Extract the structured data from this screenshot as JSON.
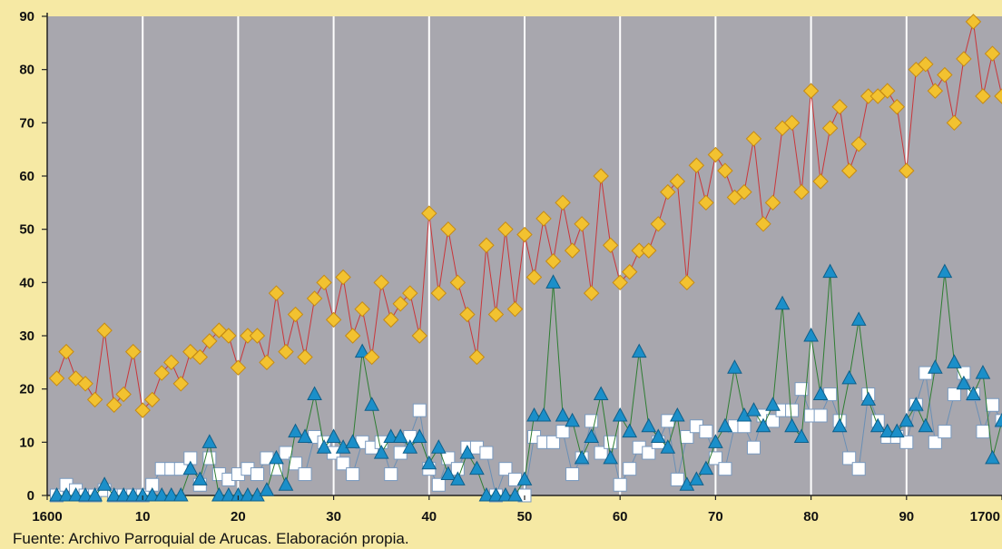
{
  "source_note": "Fuente: Archivo Parroquial de Arucas. Elaboración propia.",
  "colors": {
    "background": "#f6e9a4",
    "plot_area": "#a8a7ae",
    "gridline": "#ffffff",
    "diamond_fill": "#f2c230",
    "diamond_line": "#c9363a",
    "triangle_fill": "#1b8fc9",
    "triangle_line": "#2e7d32",
    "square_fill": "#ffffff",
    "square_line": "#6a8fb5"
  },
  "chart_data": {
    "type": "line",
    "title": "",
    "xlabel": "",
    "ylabel": "",
    "xlim": [
      1600,
      1700
    ],
    "ylim": [
      0,
      90
    ],
    "x_ticks": [
      1600,
      1610,
      1620,
      1630,
      1640,
      1650,
      1660,
      1670,
      1680,
      1690,
      1700
    ],
    "x_tick_labels": [
      "1600",
      "10",
      "20",
      "30",
      "40",
      "50",
      "60",
      "70",
      "80",
      "90",
      "1700"
    ],
    "y_ticks": [
      0,
      10,
      20,
      30,
      40,
      50,
      60,
      70,
      80,
      90
    ],
    "y_tick_labels": [
      "0",
      "10",
      "20",
      "30",
      "40",
      "50",
      "60",
      "70",
      "80",
      "90"
    ],
    "grid": "vertical",
    "legend": "none",
    "x": [
      1601,
      1602,
      1603,
      1604,
      1605,
      1606,
      1607,
      1608,
      1609,
      1610,
      1611,
      1612,
      1613,
      1614,
      1615,
      1616,
      1617,
      1618,
      1619,
      1620,
      1621,
      1622,
      1623,
      1624,
      1625,
      1626,
      1627,
      1628,
      1629,
      1630,
      1631,
      1632,
      1633,
      1634,
      1635,
      1636,
      1637,
      1638,
      1639,
      1640,
      1641,
      1642,
      1643,
      1644,
      1645,
      1646,
      1647,
      1648,
      1649,
      1650,
      1651,
      1652,
      1653,
      1654,
      1655,
      1656,
      1657,
      1658,
      1659,
      1660,
      1661,
      1662,
      1663,
      1664,
      1665,
      1666,
      1667,
      1668,
      1669,
      1670,
      1671,
      1672,
      1673,
      1674,
      1675,
      1676,
      1677,
      1678,
      1679,
      1680,
      1681,
      1682,
      1683,
      1684,
      1685,
      1686,
      1687,
      1688,
      1689,
      1690,
      1691,
      1692,
      1693,
      1694,
      1695,
      1696,
      1697,
      1698,
      1699,
      1700
    ],
    "series": [
      {
        "marker": "diamond",
        "values": [
          22,
          27,
          22,
          21,
          18,
          31,
          17,
          19,
          27,
          16,
          18,
          23,
          25,
          21,
          27,
          26,
          29,
          31,
          30,
          24,
          30,
          30,
          25,
          38,
          27,
          34,
          26,
          37,
          40,
          33,
          41,
          30,
          35,
          26,
          40,
          33,
          36,
          38,
          30,
          53,
          38,
          50,
          40,
          34,
          26,
          47,
          34,
          50,
          35,
          49,
          41,
          52,
          44,
          55,
          46,
          51,
          38,
          60,
          47,
          40,
          42,
          46,
          46,
          51,
          57,
          59,
          40,
          62,
          55,
          64,
          61,
          56,
          57,
          67,
          51,
          55,
          69,
          70,
          57,
          76,
          59,
          69,
          73,
          61,
          66,
          75,
          75,
          76,
          73,
          61,
          80,
          81,
          76,
          79,
          70,
          82,
          89,
          75,
          83,
          75
        ]
      },
      {
        "marker": "triangle",
        "values": [
          0,
          0,
          0,
          0,
          0,
          2,
          0,
          0,
          0,
          0,
          0,
          0,
          0,
          0,
          5,
          3,
          10,
          0,
          0,
          0,
          0,
          0,
          1,
          7,
          2,
          12,
          11,
          19,
          9,
          11,
          9,
          10,
          27,
          17,
          8,
          11,
          11,
          9,
          11,
          6,
          9,
          4,
          3,
          8,
          5,
          0,
          0,
          0,
          0,
          3,
          15,
          15,
          40,
          15,
          14,
          7,
          11,
          19,
          7,
          15,
          12,
          27,
          13,
          11,
          9,
          15,
          2,
          3,
          5,
          10,
          13,
          24,
          15,
          16,
          13,
          17,
          36,
          13,
          11,
          30,
          19,
          42,
          13,
          22,
          33,
          18,
          13,
          12,
          12,
          14,
          17,
          13,
          24,
          42,
          25,
          21,
          19,
          23,
          7,
          14
        ]
      },
      {
        "marker": "square",
        "values": [
          0,
          2,
          1,
          0,
          0,
          1,
          0,
          0,
          0,
          0,
          2,
          5,
          5,
          5,
          7,
          2,
          7,
          4,
          3,
          4,
          5,
          4,
          7,
          5,
          8,
          6,
          4,
          11,
          10,
          8,
          6,
          4,
          10,
          9,
          10,
          4,
          8,
          11,
          16,
          5,
          2,
          7,
          5,
          9,
          9,
          8,
          0,
          5,
          3,
          0,
          11,
          10,
          10,
          12,
          4,
          7,
          14,
          8,
          10,
          2,
          5,
          9,
          8,
          10,
          14,
          3,
          11,
          13,
          12,
          7,
          5,
          13,
          13,
          9,
          15,
          14,
          16,
          16,
          20,
          15,
          15,
          19,
          14,
          7,
          5,
          19,
          14,
          11,
          11,
          10,
          17,
          23,
          10,
          12,
          19,
          23,
          19,
          12,
          17,
          14
        ]
      }
    ]
  }
}
